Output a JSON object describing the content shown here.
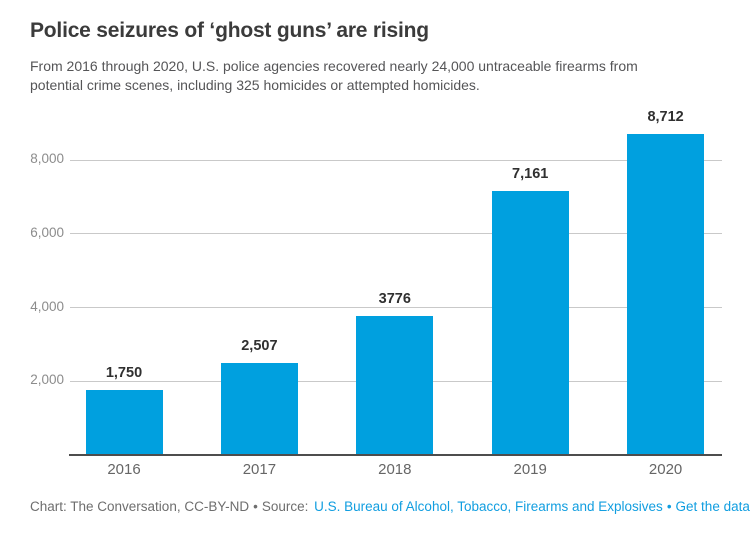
{
  "header": {
    "title": "Police seizures of ‘ghost guns’ are rising",
    "subtitle": "From 2016 through 2020, U.S. police agencies recovered nearly 24,000 untraceable firearms from potential crime scenes, including 325 homicides or attempted homicides."
  },
  "chart_data": {
    "type": "bar",
    "categories": [
      "2016",
      "2017",
      "2018",
      "2019",
      "2020"
    ],
    "values": [
      1750,
      2507,
      3776,
      7161,
      8712
    ],
    "value_labels": [
      "1,750",
      "2,507",
      "3776",
      "7,161",
      "8,712"
    ],
    "title": "Police seizures of ‘ghost guns’ are rising",
    "xlabel": "",
    "ylabel": "",
    "ylim": [
      0,
      9100
    ],
    "yticks": [
      2000,
      4000,
      6000,
      8000
    ],
    "ytick_labels": [
      "2,000",
      "4,000",
      "6,000",
      "8,000"
    ],
    "grid": true,
    "legend": "none",
    "bar_color": "#00a0df"
  },
  "footer": {
    "credit": "Chart: The Conversation, CC-BY-ND",
    "separator": "•",
    "source_label": "Source:",
    "source_link": "U.S. Bureau of Alcohol, Tobacco, Firearms and Explosives",
    "get_data_link": "Get the data"
  },
  "colors": {
    "bar": "#00a0df",
    "link": "#119ee0",
    "title": "#3b3b3b",
    "subtitle": "#555557",
    "gridline": "#c9c9c9",
    "axis_line": "#4d4d4d",
    "y_tick": "#8c8c8c",
    "x_tick": "#666666",
    "footer_text": "#6e6e6e"
  }
}
